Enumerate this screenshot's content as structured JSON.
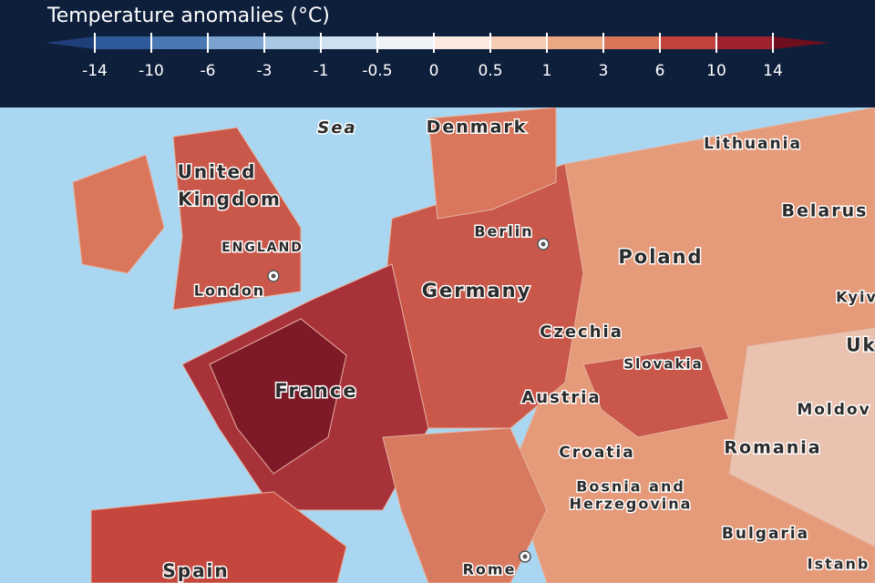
{
  "legend": {
    "title": "Temperature anomalies (°C)",
    "ticks": [
      "-14",
      "-10",
      "-6",
      "-3",
      "-1",
      "-0.5",
      "0",
      "0.5",
      "1",
      "3",
      "6",
      "10",
      "14"
    ]
  },
  "places": [
    "Sea",
    "Denmark",
    "Lithuania",
    "United",
    "Kingdom",
    "Belarus",
    "Berlin",
    "ENGLAND",
    "Poland",
    "London",
    "Germany",
    "Kyiv",
    "Czechia",
    "Uk",
    "Slovakia",
    "France",
    "Austria",
    "Moldov",
    "Croatia",
    "Romania",
    "Bosnia and",
    "Herzegovina",
    "Bulgaria",
    "Spain",
    "Rome",
    "Istanb"
  ]
}
